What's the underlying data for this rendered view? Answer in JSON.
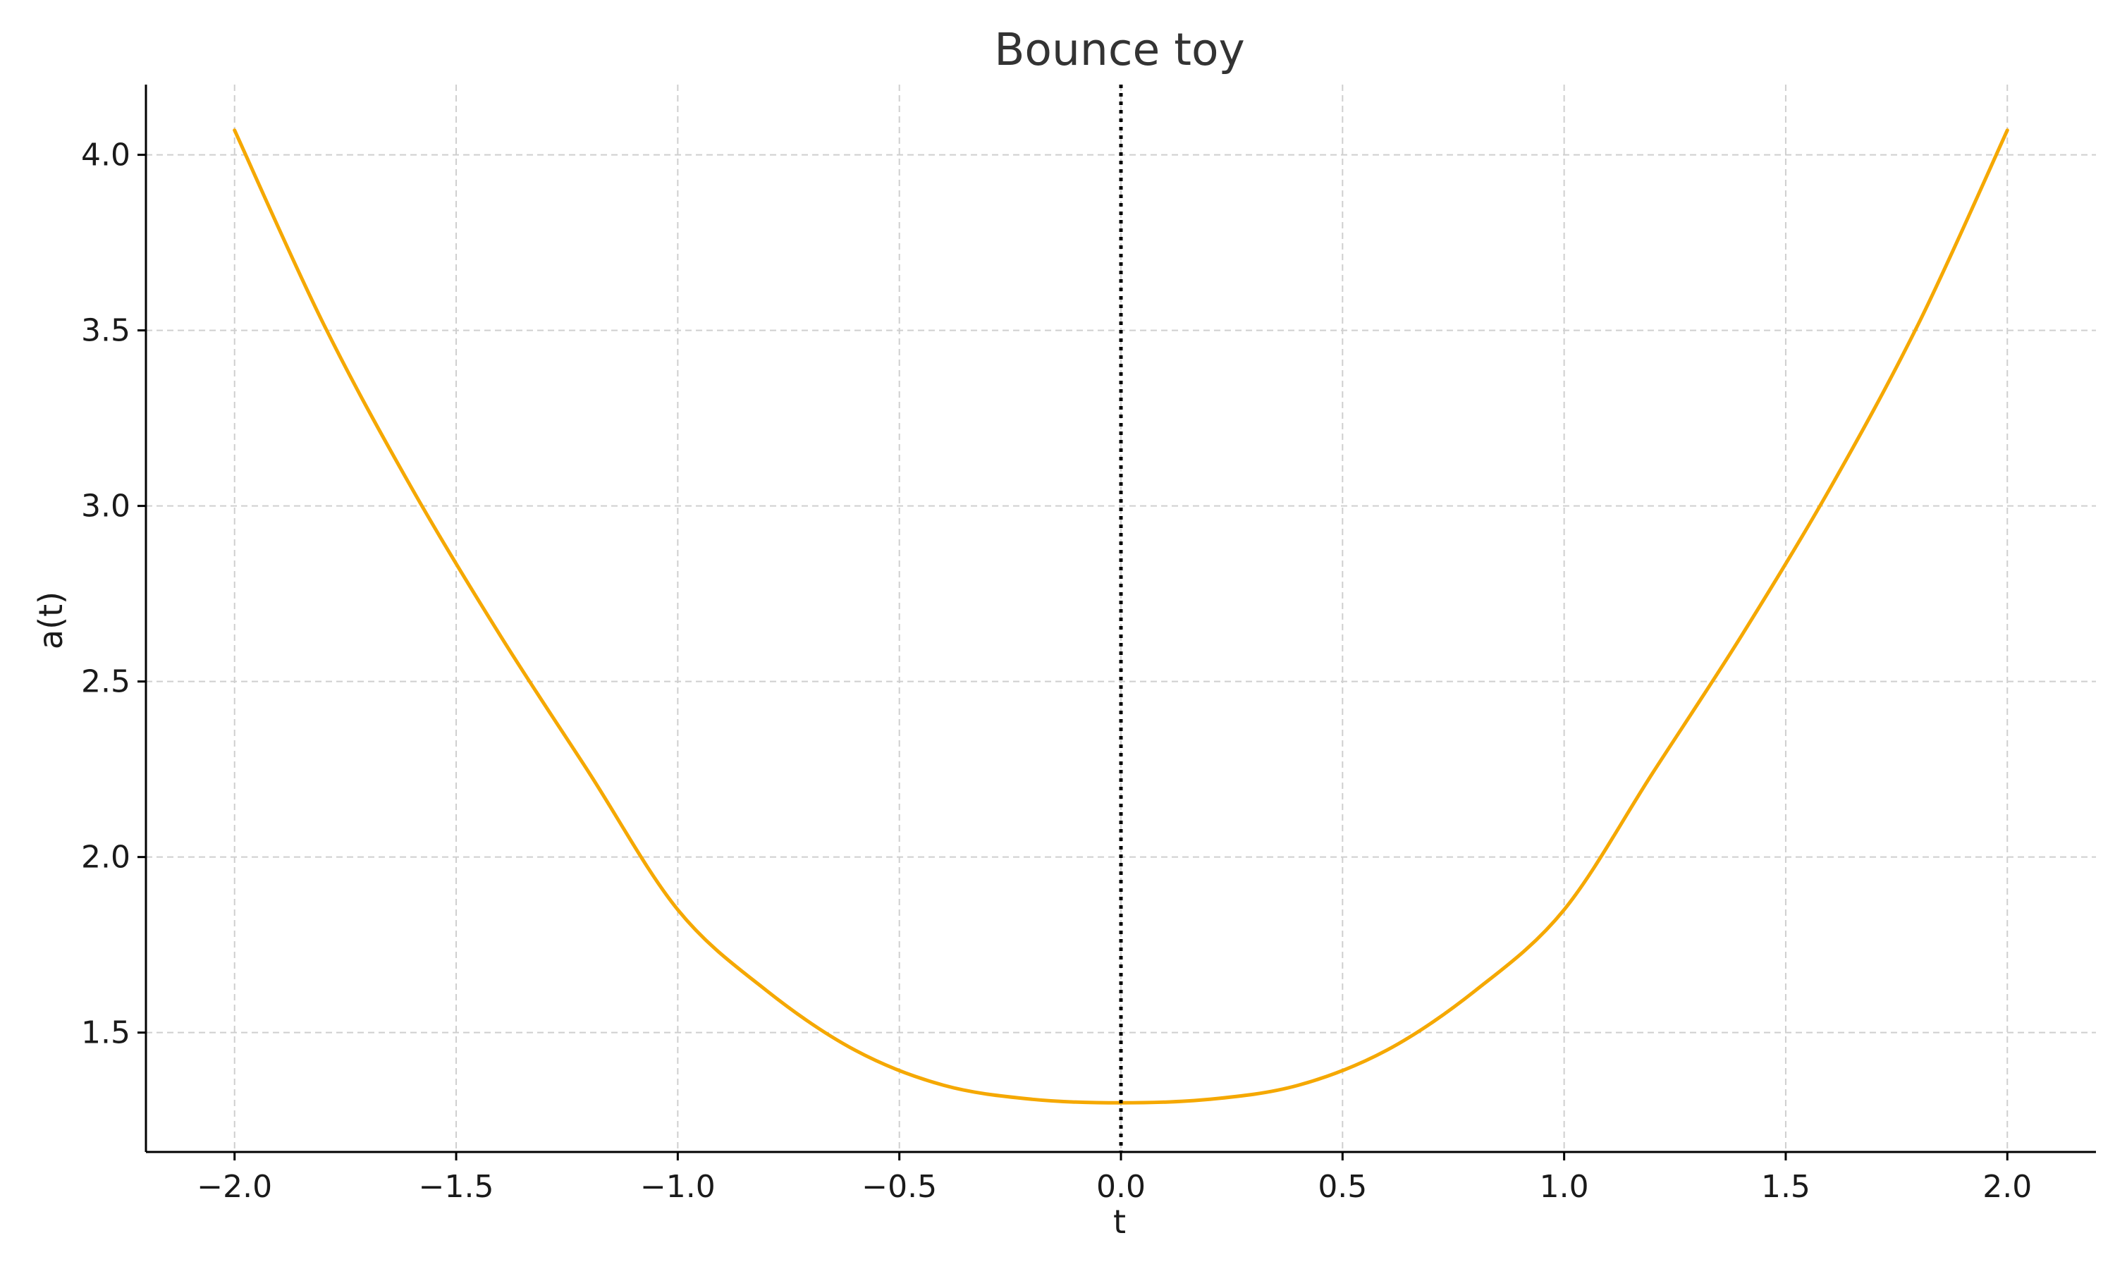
{
  "chart_data": {
    "type": "line",
    "title": "Bounce toy",
    "xlabel": "t",
    "ylabel": "a(t)",
    "xlim": [
      -2.2,
      2.2
    ],
    "ylim": [
      1.16,
      4.2
    ],
    "x_ticks": [
      -2.0,
      -1.5,
      -1.0,
      -0.5,
      0.0,
      0.5,
      1.0,
      1.5,
      2.0
    ],
    "x_tick_labels": [
      "−2.0",
      "−1.5",
      "−1.0",
      "−0.5",
      "0.0",
      "0.5",
      "1.0",
      "1.5",
      "2.0"
    ],
    "y_ticks": [
      1.5,
      2.0,
      2.5,
      3.0,
      3.5,
      4.0
    ],
    "y_tick_labels": [
      "1.5",
      "2.0",
      "2.5",
      "3.0",
      "3.5",
      "4.0"
    ],
    "grid": true,
    "series": [
      {
        "color": "#f5a800",
        "x": [
          -2.0,
          -1.8,
          -1.6,
          -1.4,
          -1.2,
          -1.0,
          -0.8,
          -0.6,
          -0.4,
          -0.2,
          0.0,
          0.2,
          0.4,
          0.6,
          0.8,
          1.0,
          1.2,
          1.4,
          1.6,
          1.8,
          2.0
        ],
        "y": [
          4.07,
          3.52,
          3.05,
          2.63,
          2.24,
          1.85,
          1.62,
          1.45,
          1.35,
          1.31,
          1.3,
          1.31,
          1.35,
          1.45,
          1.62,
          1.85,
          2.24,
          2.63,
          3.05,
          3.52,
          4.07
        ]
      }
    ],
    "annotations": [
      {
        "type": "vertical-line",
        "x": 0.0,
        "style": "dotted",
        "color": "#000000"
      }
    ]
  }
}
